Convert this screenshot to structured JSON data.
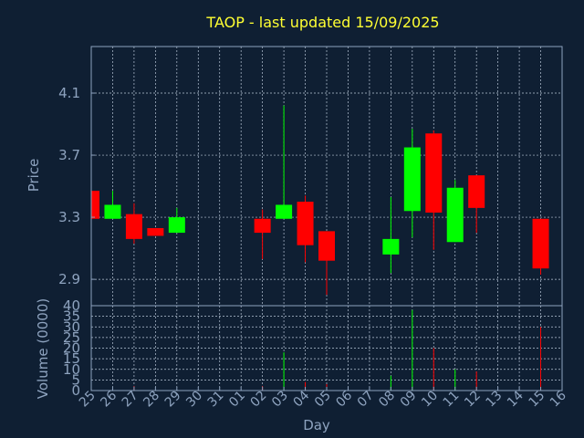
{
  "chart_data": {
    "type": "candlestick",
    "title": "TAOP - last updated 15/09/2025",
    "xlabel": "Day",
    "price_panel": {
      "ylabel": "Price",
      "ylim": [
        2.73,
        4.4
      ],
      "yticks": [
        "2.9",
        "3.3",
        "3.7",
        "4.1"
      ],
      "ytick_values": [
        2.9,
        3.3,
        3.7,
        4.1
      ],
      "grid": true
    },
    "volume_panel": {
      "ylabel": "Volume (0000)",
      "ylim": [
        0,
        40
      ],
      "yticks": [
        "0",
        "5",
        "10",
        "15",
        "20",
        "25",
        "30",
        "35",
        "40"
      ],
      "ytick_values": [
        0,
        5,
        10,
        15,
        20,
        25,
        30,
        35,
        40
      ],
      "grid": true
    },
    "categories": [
      "25",
      "26",
      "27",
      "28",
      "29",
      "30",
      "31",
      "01",
      "02",
      "03",
      "04",
      "05",
      "06",
      "07",
      "08",
      "09",
      "10",
      "11",
      "12",
      "13",
      "14",
      "15",
      "16"
    ],
    "candles": [
      {
        "day": "25",
        "open": 3.47,
        "high": 3.47,
        "low": 3.29,
        "close": 3.29,
        "volume": 0
      },
      {
        "day": "26",
        "open": 3.29,
        "high": 3.47,
        "low": 3.29,
        "close": 3.38,
        "volume": 0
      },
      {
        "day": "27",
        "open": 3.32,
        "high": 3.39,
        "low": 3.13,
        "close": 3.16,
        "volume": 2
      },
      {
        "day": "28",
        "open": 3.23,
        "high": 3.23,
        "low": 3.18,
        "close": 3.18,
        "volume": 0
      },
      {
        "day": "29",
        "open": 3.2,
        "high": 3.36,
        "low": 3.2,
        "close": 3.3,
        "volume": 0
      },
      {
        "day": "02",
        "open": 3.29,
        "high": 3.35,
        "low": 3.03,
        "close": 3.2,
        "volume": 2
      },
      {
        "day": "03",
        "open": 3.29,
        "high": 4.02,
        "low": 3.29,
        "close": 3.38,
        "volume": 18
      },
      {
        "day": "04",
        "open": 3.4,
        "high": 3.44,
        "low": 3.01,
        "close": 3.12,
        "volume": 4
      },
      {
        "day": "05",
        "open": 3.21,
        "high": 3.21,
        "low": 2.8,
        "close": 3.02,
        "volume": 3
      },
      {
        "day": "08",
        "open": 3.06,
        "high": 3.43,
        "low": 2.94,
        "close": 3.16,
        "volume": 7
      },
      {
        "day": "09",
        "open": 3.34,
        "high": 3.87,
        "low": 3.17,
        "close": 3.75,
        "volume": 38
      },
      {
        "day": "10",
        "open": 3.84,
        "high": 3.86,
        "low": 3.09,
        "close": 3.33,
        "volume": 20
      },
      {
        "day": "11",
        "open": 3.14,
        "high": 3.54,
        "low": 3.14,
        "close": 3.49,
        "volume": 10
      },
      {
        "day": "12",
        "open": 3.57,
        "high": 3.57,
        "low": 3.2,
        "close": 3.36,
        "volume": 9
      },
      {
        "day": "15",
        "open": 3.29,
        "high": 3.29,
        "low": 2.93,
        "close": 2.97,
        "volume": 30
      }
    ],
    "colors": {
      "background": "#0f1f33",
      "axis": "#8ea3bf",
      "grid": "#b9c7d8",
      "title": "#ffff33",
      "label": "#8ea3bf",
      "up": "#00ff00",
      "down": "#ff0000"
    }
  }
}
